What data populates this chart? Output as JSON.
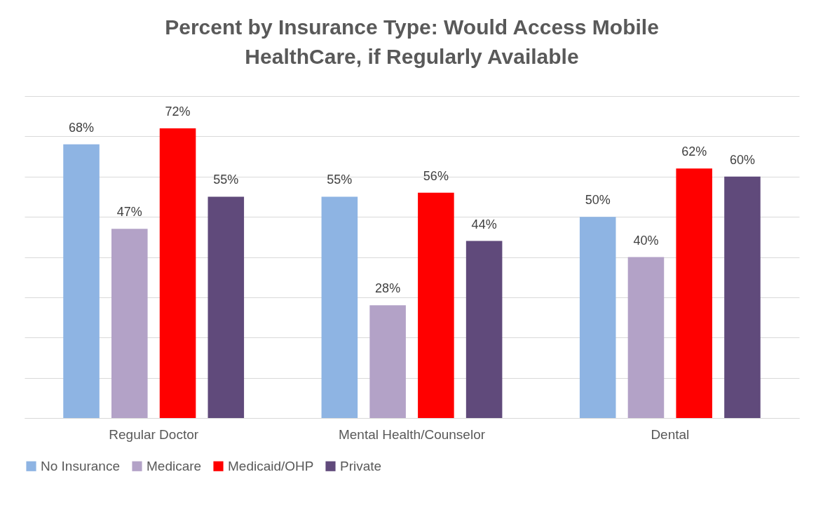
{
  "chart_data": {
    "type": "bar",
    "title": [
      "Percent by Insurance Type: Would Access Mobile",
      "HealthCare, if Regularly Available"
    ],
    "categories": [
      "Regular Doctor",
      "Mental Health/Counselor",
      "Dental"
    ],
    "series": [
      {
        "name": "No Insurance",
        "color": "#8eb4e3",
        "values": [
          68,
          55,
          50
        ],
        "value_labels": [
          "68%",
          "55%",
          "50%"
        ]
      },
      {
        "name": "Medicare",
        "color": "#b3a2c7",
        "values": [
          47,
          28,
          40
        ],
        "value_labels": [
          "47%",
          "28%",
          "40%"
        ]
      },
      {
        "name": "Medicaid/OHP",
        "color": "#ff0000",
        "values": [
          72,
          56,
          62
        ],
        "value_labels": [
          "72%",
          "56%",
          "62%"
        ]
      },
      {
        "name": "Private",
        "color": "#604a7b",
        "values": [
          55,
          44,
          60
        ],
        "value_labels": [
          "55%",
          "44%",
          "60%"
        ]
      }
    ],
    "ylim": [
      0,
      80
    ],
    "yticks": [
      {
        "value": 0,
        "label": null
      },
      {
        "value": 10,
        "label": null
      },
      {
        "value": 20,
        "label": null
      },
      {
        "value": 30,
        "label": null
      },
      {
        "value": 40,
        "label": null
      },
      {
        "value": 50,
        "label": null
      },
      {
        "value": 60,
        "label": null
      },
      {
        "value": 70,
        "label": null
      },
      {
        "value": 80,
        "label": null
      }
    ],
    "tick_labels": "x",
    "grid": "y",
    "legend": "bottom"
  }
}
